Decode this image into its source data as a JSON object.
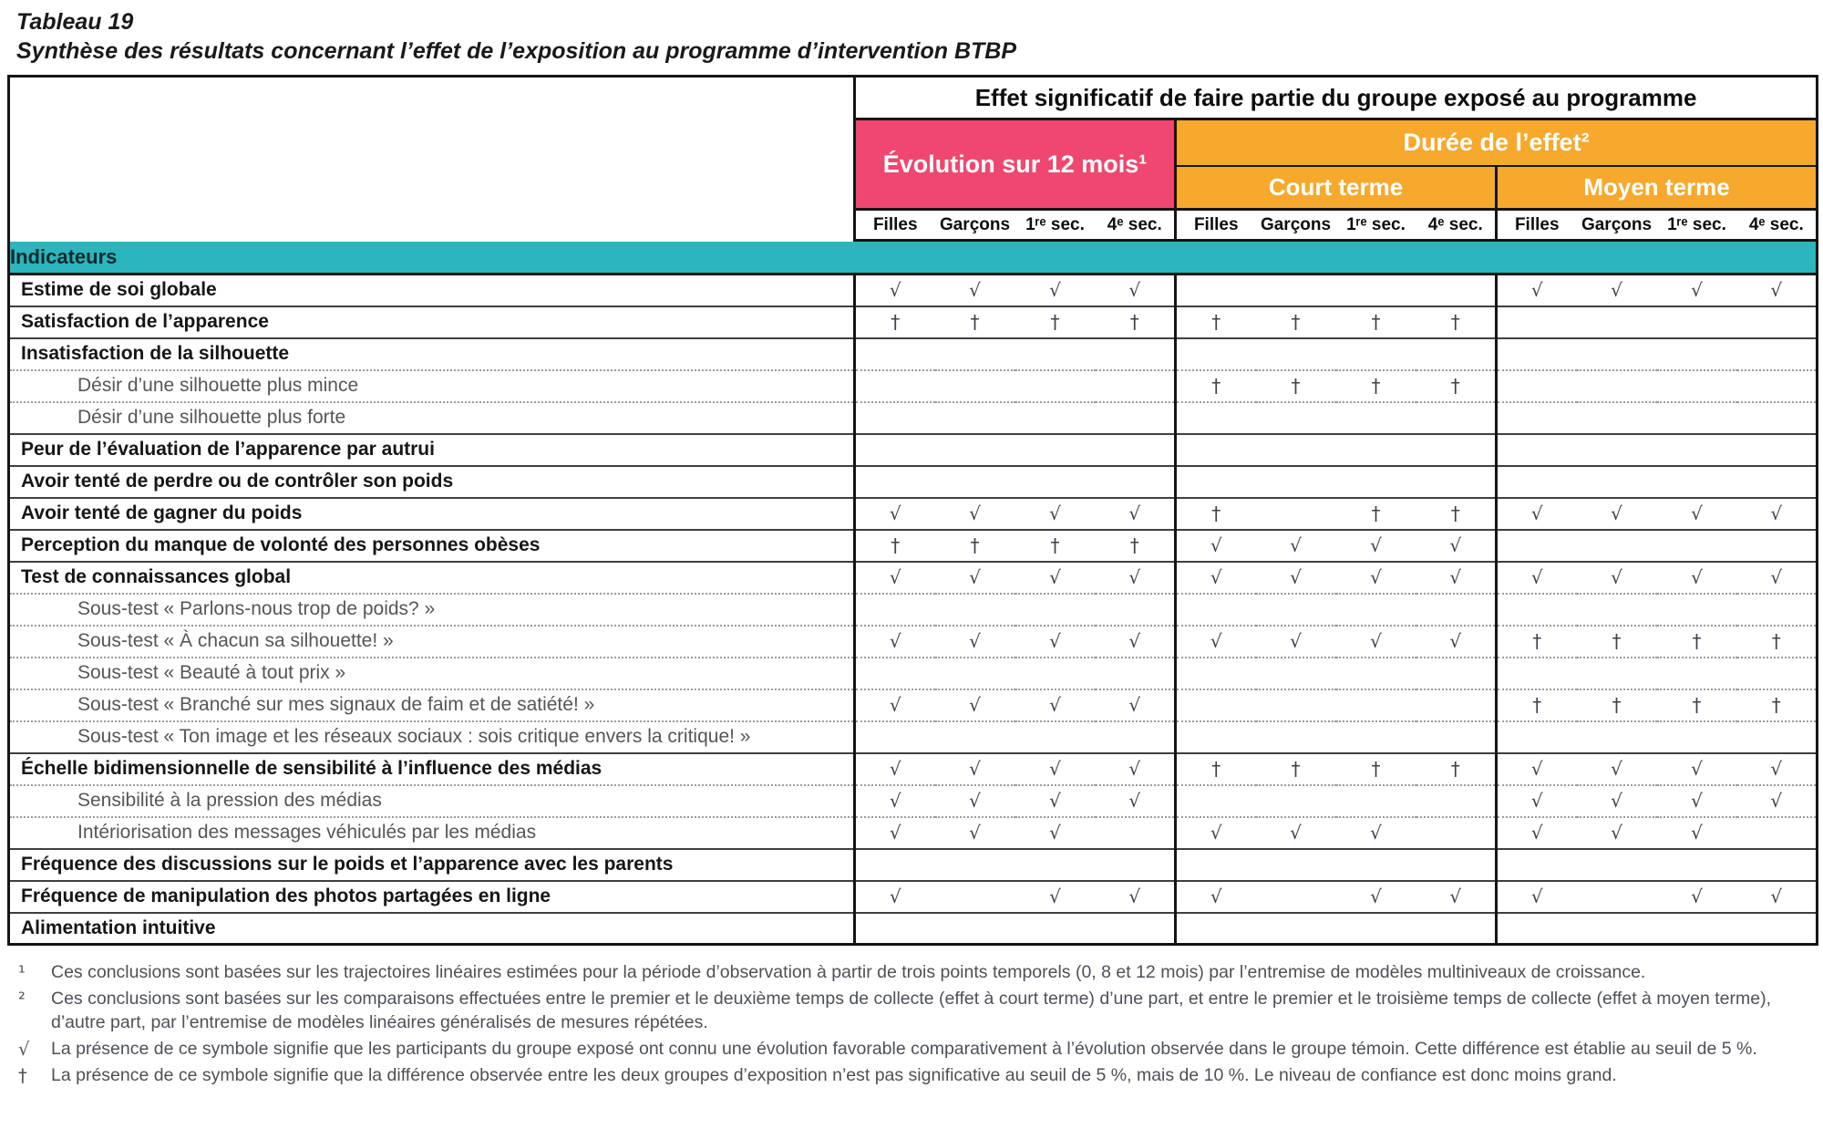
{
  "title": {
    "tableau": "Tableau 19",
    "subtitle": "Synthèse des résultats concernant l’effet de l’exposition au programme d’intervention BTBP"
  },
  "colors": {
    "pink": "#EF476F",
    "orange": "#F6A92C",
    "teal": "#2BB5BC"
  },
  "symbols": {
    "favorable": "√",
    "tendance": "†"
  },
  "table": {
    "main_header": "Effet significatif de faire partie du groupe exposé au programme",
    "col_evolution": "Évolution sur 12 mois¹",
    "col_duree": "Durée de l’effet²",
    "col_court": "Court terme",
    "col_moyen": "Moyen terme",
    "subcols": [
      "Filles",
      "Garçons",
      "1ʳᵉ sec.",
      "4ᵉ sec."
    ],
    "section_label": "Indicateurs",
    "rows": [
      {
        "label": "Estime de soi globale",
        "sub": false,
        "cells": [
          "√",
          "√",
          "√",
          "√",
          "",
          "",
          "",
          "",
          "√",
          "√",
          "√",
          "√"
        ]
      },
      {
        "label": "Satisfaction de l’apparence",
        "sub": false,
        "cells": [
          "†",
          "†",
          "†",
          "†",
          "†",
          "†",
          "†",
          "†",
          "",
          "",
          "",
          ""
        ]
      },
      {
        "label": "Insatisfaction de la silhouette",
        "sub": false,
        "cells": [
          "",
          "",
          "",
          "",
          "",
          "",
          "",
          "",
          "",
          "",
          "",
          ""
        ]
      },
      {
        "label": "Désir d’une silhouette plus mince",
        "sub": true,
        "cells": [
          "",
          "",
          "",
          "",
          "†",
          "†",
          "†",
          "†",
          "",
          "",
          "",
          ""
        ]
      },
      {
        "label": "Désir d’une silhouette plus forte",
        "sub": true,
        "cells": [
          "",
          "",
          "",
          "",
          "",
          "",
          "",
          "",
          "",
          "",
          "",
          ""
        ]
      },
      {
        "label": "Peur de l’évaluation de l’apparence par autrui",
        "sub": false,
        "cells": [
          "",
          "",
          "",
          "",
          "",
          "",
          "",
          "",
          "",
          "",
          "",
          ""
        ]
      },
      {
        "label": "Avoir tenté de perdre ou de contrôler son poids",
        "sub": false,
        "cells": [
          "",
          "",
          "",
          "",
          "",
          "",
          "",
          "",
          "",
          "",
          "",
          ""
        ]
      },
      {
        "label": "Avoir tenté de gagner du poids",
        "sub": false,
        "cells": [
          "√",
          "√",
          "√",
          "√",
          "†",
          "",
          "†",
          "†",
          "√",
          "√",
          "√",
          "√"
        ]
      },
      {
        "label": "Perception du manque de volonté des personnes obèses",
        "sub": false,
        "cells": [
          "†",
          "†",
          "†",
          "†",
          "√",
          "√",
          "√",
          "√",
          "",
          "",
          "",
          ""
        ]
      },
      {
        "label": "Test de connaissances global",
        "sub": false,
        "cells": [
          "√",
          "√",
          "√",
          "√",
          "√",
          "√",
          "√",
          "√",
          "√",
          "√",
          "√",
          "√"
        ]
      },
      {
        "label": "Sous-test « Parlons-nous trop de poids? »",
        "sub": true,
        "cells": [
          "",
          "",
          "",
          "",
          "",
          "",
          "",
          "",
          "",
          "",
          "",
          ""
        ]
      },
      {
        "label": "Sous-test «  À chacun sa silhouette! »",
        "sub": true,
        "cells": [
          "√",
          "√",
          "√",
          "√",
          "√",
          "√",
          "√",
          "√",
          "†",
          "†",
          "†",
          "†"
        ]
      },
      {
        "label": "Sous-test « Beauté à tout prix »",
        "sub": true,
        "cells": [
          "",
          "",
          "",
          "",
          "",
          "",
          "",
          "",
          "",
          "",
          "",
          ""
        ]
      },
      {
        "label": "Sous-test « Branché sur mes signaux de faim et de satiété! »",
        "sub": true,
        "cells": [
          "√",
          "√",
          "√",
          "√",
          "",
          "",
          "",
          "",
          "†",
          "†",
          "†",
          "†"
        ]
      },
      {
        "label": "Sous-test « Ton image et les réseaux sociaux : sois critique envers la critique! »",
        "sub": true,
        "cells": [
          "",
          "",
          "",
          "",
          "",
          "",
          "",
          "",
          "",
          "",
          "",
          ""
        ]
      },
      {
        "label": "Échelle bidimensionnelle de sensibilité à l’influence des médias",
        "sub": false,
        "cells": [
          "√",
          "√",
          "√",
          "√",
          "†",
          "†",
          "†",
          "†",
          "√",
          "√",
          "√",
          "√"
        ]
      },
      {
        "label": "Sensibilité à la pression des médias",
        "sub": true,
        "cells": [
          "√",
          "√",
          "√",
          "√",
          "",
          "",
          "",
          "",
          "√",
          "√",
          "√",
          "√"
        ]
      },
      {
        "label": "Intériorisation des messages véhiculés par les médias",
        "sub": true,
        "cells": [
          "√",
          "√",
          "√",
          "",
          "√",
          "√",
          "√",
          "",
          "√",
          "√",
          "√",
          ""
        ]
      },
      {
        "label": "Fréquence des discussions sur le poids et l’apparence avec les parents",
        "sub": false,
        "cells": [
          "",
          "",
          "",
          "",
          "",
          "",
          "",
          "",
          "",
          "",
          "",
          ""
        ]
      },
      {
        "label": "Fréquence de manipulation des photos partagées en ligne",
        "sub": false,
        "cells": [
          "√",
          "",
          "√",
          "√",
          "√",
          "",
          "√",
          "√",
          "√",
          "",
          "√",
          "√"
        ]
      },
      {
        "label": "Alimentation intuitive",
        "sub": false,
        "cells": [
          "",
          "",
          "",
          "",
          "",
          "",
          "",
          "",
          "",
          "",
          "",
          ""
        ]
      }
    ]
  },
  "footnotes": [
    {
      "marker": "¹",
      "text": "Ces conclusions sont basées sur les trajectoires linéaires estimées pour la période d’observation à partir de trois points temporels (0, 8 et 12 mois) par l’entremise de modèles multiniveaux de croissance."
    },
    {
      "marker": "²",
      "text": "Ces conclusions sont basées sur les comparaisons effectuées entre le premier et le deuxième temps de collecte (effet à court terme) d’une part, et entre le premier et le troisième temps de collecte (effet à moyen terme), d’autre part, par l’entremise de modèles linéaires généralisés de mesures répétées."
    },
    {
      "marker": "√",
      "text": "La présence de ce symbole signifie que les participants du groupe exposé ont connu une évolution favorable comparativement à l’évolution observée dans le groupe témoin. Cette différence est établie au seuil de 5 %."
    },
    {
      "marker": "†",
      "text": "La présence de ce symbole signifie que la différence observée entre les deux groupes d’exposition n’est pas significative au seuil de 5 %, mais de 10 %. Le niveau de confiance est donc moins grand."
    }
  ]
}
